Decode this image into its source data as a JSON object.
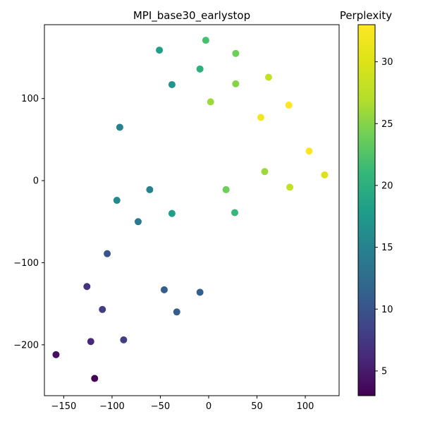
{
  "chart_data": {
    "type": "scatter",
    "title": "MPI_base30_earlystop",
    "xlabel": "",
    "ylabel": "",
    "xlim": [
      -170,
      135
    ],
    "ylim": [
      -262,
      190
    ],
    "xticks": [
      -150,
      -100,
      -50,
      0,
      50,
      100
    ],
    "yticks": [
      -200,
      -100,
      0,
      100
    ],
    "grid": false,
    "colorbar": {
      "label": "Perplexity",
      "colormap": "viridis",
      "range": [
        3,
        33
      ],
      "ticks": [
        5,
        10,
        15,
        20,
        25,
        30
      ]
    },
    "points": [
      {
        "x": -3,
        "y": 171,
        "perplexity": 22
      },
      {
        "x": -51,
        "y": 159,
        "perplexity": 18
      },
      {
        "x": 28,
        "y": 155,
        "perplexity": 24
      },
      {
        "x": -9,
        "y": 136,
        "perplexity": 20
      },
      {
        "x": 62,
        "y": 126,
        "perplexity": 28
      },
      {
        "x": -38,
        "y": 117,
        "perplexity": 17
      },
      {
        "x": 28,
        "y": 118,
        "perplexity": 25
      },
      {
        "x": 2,
        "y": 96,
        "perplexity": 26
      },
      {
        "x": 83,
        "y": 92,
        "perplexity": 33
      },
      {
        "x": 54,
        "y": 77,
        "perplexity": 32
      },
      {
        "x": -92,
        "y": 65,
        "perplexity": 15
      },
      {
        "x": 104,
        "y": 36,
        "perplexity": 33
      },
      {
        "x": 58,
        "y": 11,
        "perplexity": 26
      },
      {
        "x": 120,
        "y": 7,
        "perplexity": 30
      },
      {
        "x": -61,
        "y": -11,
        "perplexity": 15
      },
      {
        "x": 18,
        "y": -11,
        "perplexity": 24
      },
      {
        "x": 84,
        "y": -8,
        "perplexity": 28
      },
      {
        "x": -95,
        "y": -24,
        "perplexity": 16
      },
      {
        "x": -38,
        "y": -40,
        "perplexity": 18
      },
      {
        "x": 27,
        "y": -39,
        "perplexity": 21
      },
      {
        "x": -73,
        "y": -50,
        "perplexity": 14
      },
      {
        "x": -105,
        "y": -89,
        "perplexity": 10
      },
      {
        "x": -126,
        "y": -129,
        "perplexity": 7
      },
      {
        "x": -46,
        "y": -133,
        "perplexity": 11
      },
      {
        "x": -9,
        "y": -136,
        "perplexity": 11
      },
      {
        "x": -110,
        "y": -157,
        "perplexity": 8
      },
      {
        "x": -33,
        "y": -160,
        "perplexity": 11
      },
      {
        "x": -122,
        "y": -196,
        "perplexity": 6
      },
      {
        "x": -88,
        "y": -194,
        "perplexity": 8
      },
      {
        "x": -158,
        "y": -212,
        "perplexity": 4
      },
      {
        "x": -118,
        "y": -241,
        "perplexity": 3
      }
    ]
  }
}
